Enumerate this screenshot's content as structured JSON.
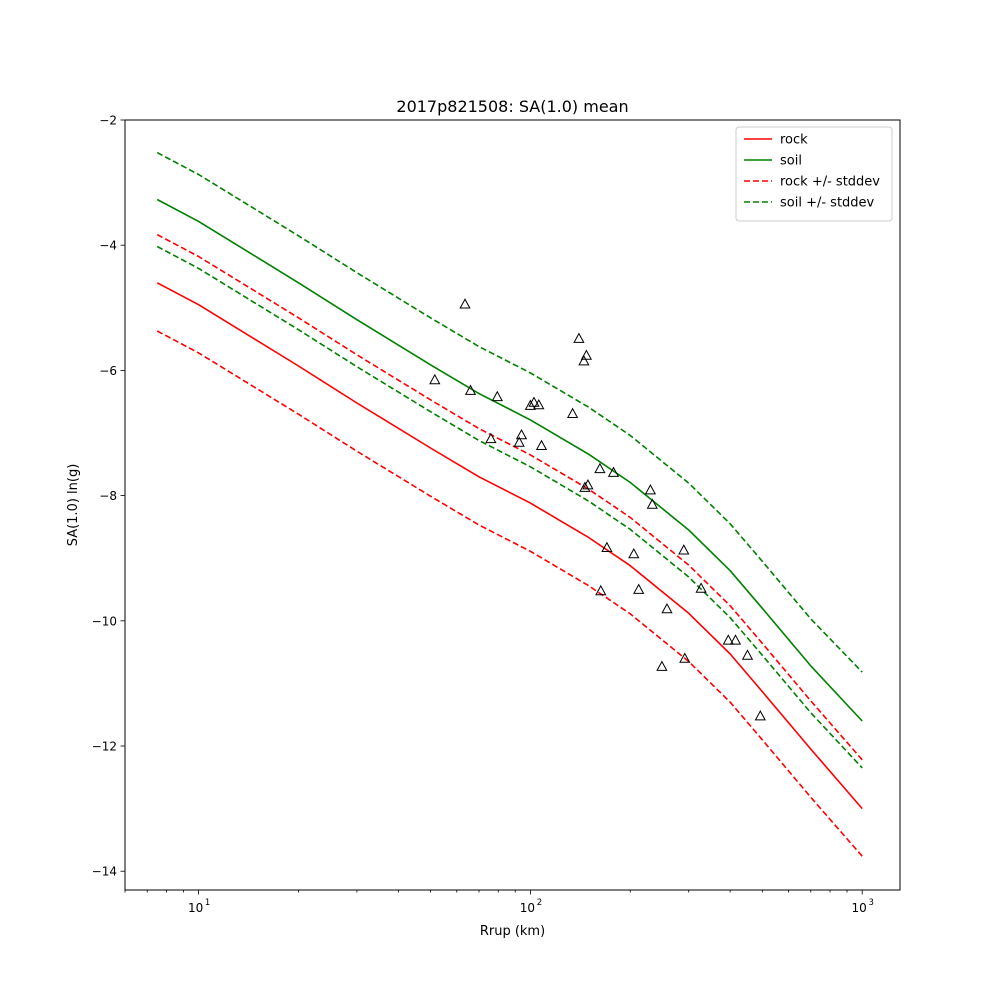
{
  "chart_data": {
    "type": "line",
    "title": "2017p821508: SA(1.0) mean",
    "xlabel": "Rrup (km)",
    "ylabel": "SA(1.0) ln(g)",
    "xscale": "log",
    "xlim": [
      6,
      1300
    ],
    "ylim": [
      -14.3,
      -2.0
    ],
    "xticks": [
      {
        "value": 10,
        "label": "10",
        "exp": "1"
      },
      {
        "value": 100,
        "label": "10",
        "exp": "2"
      },
      {
        "value": 1000,
        "label": "10",
        "exp": "3"
      }
    ],
    "yticks": [
      {
        "value": -2,
        "label": "−2"
      },
      {
        "value": -4,
        "label": "−4"
      },
      {
        "value": -6,
        "label": "−6"
      },
      {
        "value": -8,
        "label": "−8"
      },
      {
        "value": -10,
        "label": "−10"
      },
      {
        "value": -12,
        "label": "−12"
      },
      {
        "value": -14,
        "label": "−14"
      }
    ],
    "grid": false,
    "legend_position": "top-right",
    "x": [
      7.5,
      10,
      20,
      30,
      50,
      70,
      100,
      150,
      200,
      300,
      400,
      500,
      700,
      1000
    ],
    "series": [
      {
        "name": "rock",
        "style": "solid",
        "color": "#ff0000",
        "values": [
          -4.6,
          -4.95,
          -5.93,
          -6.52,
          -7.24,
          -7.7,
          -8.12,
          -8.67,
          -9.12,
          -9.88,
          -10.53,
          -11.13,
          -12.05,
          -13.0
        ]
      },
      {
        "name": "soil",
        "style": "solid",
        "color": "#008000",
        "values": [
          -3.27,
          -3.62,
          -4.6,
          -5.19,
          -5.91,
          -6.37,
          -6.79,
          -7.34,
          -7.79,
          -8.55,
          -9.2,
          -9.8,
          -10.72,
          -11.6
        ]
      },
      {
        "name": "rock +/- stddev",
        "style": "dashed",
        "color": "#ff0000",
        "legend": true,
        "values": [
          -3.83,
          -4.18,
          -5.16,
          -5.75,
          -6.47,
          -6.93,
          -7.35,
          -7.9,
          -8.35,
          -9.11,
          -9.76,
          -10.36,
          -11.28,
          -12.22
        ]
      },
      {
        "name": "rock +/- stddev",
        "style": "dashed",
        "color": "#ff0000",
        "legend": false,
        "values": [
          -5.37,
          -5.72,
          -6.7,
          -7.29,
          -8.01,
          -8.47,
          -8.89,
          -9.44,
          -9.89,
          -10.65,
          -11.3,
          -11.9,
          -12.82,
          -13.76
        ]
      },
      {
        "name": "soil +/- stddev",
        "style": "dashed",
        "color": "#008000",
        "legend": true,
        "values": [
          -2.52,
          -2.87,
          -3.85,
          -4.44,
          -5.16,
          -5.62,
          -6.04,
          -6.59,
          -7.04,
          -7.8,
          -8.45,
          -9.05,
          -9.97,
          -10.82
        ]
      },
      {
        "name": "soil +/- stddev",
        "style": "dashed",
        "color": "#008000",
        "legend": false,
        "values": [
          -4.02,
          -4.37,
          -5.35,
          -5.94,
          -6.66,
          -7.12,
          -7.54,
          -8.09,
          -8.54,
          -9.3,
          -9.95,
          -10.55,
          -11.47,
          -12.35
        ]
      }
    ],
    "scatter": {
      "marker": "triangle",
      "color": "#000000",
      "points": [
        [
          63.5,
          -4.95
        ],
        [
          51.5,
          -6.16
        ],
        [
          66,
          -6.33
        ],
        [
          79.5,
          -6.43
        ],
        [
          76,
          -7.1
        ],
        [
          92.5,
          -7.16
        ],
        [
          94,
          -7.04
        ],
        [
          100,
          -6.57
        ],
        [
          102.5,
          -6.52
        ],
        [
          106,
          -6.56
        ],
        [
          108,
          -7.21
        ],
        [
          134,
          -6.7
        ],
        [
          140,
          -5.5
        ],
        [
          145,
          -5.86
        ],
        [
          147.5,
          -5.77
        ],
        [
          146,
          -7.88
        ],
        [
          149,
          -7.84
        ],
        [
          162,
          -7.58
        ],
        [
          178,
          -7.64
        ],
        [
          170,
          -8.84
        ],
        [
          163,
          -9.53
        ],
        [
          205,
          -8.94
        ],
        [
          212,
          -9.51
        ],
        [
          230,
          -7.92
        ],
        [
          233,
          -8.15
        ],
        [
          249,
          -10.74
        ],
        [
          258,
          -9.82
        ],
        [
          290,
          -8.88
        ],
        [
          292,
          -10.61
        ],
        [
          327,
          -9.49
        ],
        [
          395,
          -10.32
        ],
        [
          415,
          -10.32
        ],
        [
          451,
          -10.56
        ],
        [
          493,
          -11.53
        ]
      ]
    }
  }
}
